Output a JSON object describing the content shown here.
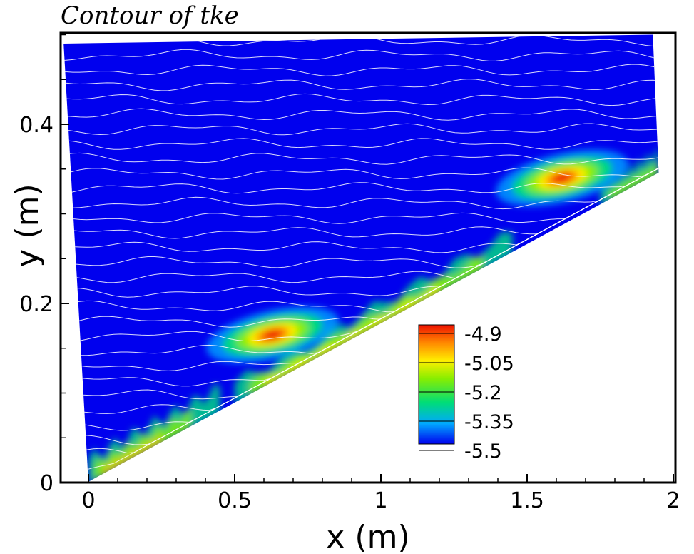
{
  "chart_data": {
    "type": "heatmap",
    "title": "Contour of tke",
    "xlabel": "x (m)",
    "ylabel": "y (m)",
    "xlim": [
      -0.1,
      2.0
    ],
    "ylim": [
      0,
      0.5
    ],
    "xticks": [
      0,
      0.5,
      1,
      1.5,
      2
    ],
    "xtick_labels": [
      "0",
      "0.5",
      "1",
      "1.5",
      "2"
    ],
    "yticks": [
      0,
      0.2,
      0.4
    ],
    "ytick_labels": [
      "0",
      "0.2",
      "0.4"
    ],
    "domain_polygon": [
      [
        -0.085,
        0.49
      ],
      [
        1.93,
        0.5
      ],
      [
        1.95,
        0.345
      ],
      [
        0,
        0
      ]
    ],
    "wall_line": {
      "x": [
        0,
        1.95
      ],
      "y": [
        0,
        0.345
      ]
    },
    "colorbar": {
      "levels": [
        "-4.9",
        "-5.05",
        "-5.2",
        "-5.35",
        "-5.5"
      ],
      "colors": [
        "#0000ee",
        "#00a8ff",
        "#00dd77",
        "#88ee00",
        "#ffee00",
        "#ff8800",
        "#ee1100"
      ],
      "position": "lower-right"
    },
    "background_value": -5.5,
    "hotspots": [
      {
        "x": 0.63,
        "y": 0.165,
        "peak": -4.9
      },
      {
        "x": 1.62,
        "y": 0.34,
        "peak": -4.9
      }
    ],
    "contour_lines": "white"
  }
}
